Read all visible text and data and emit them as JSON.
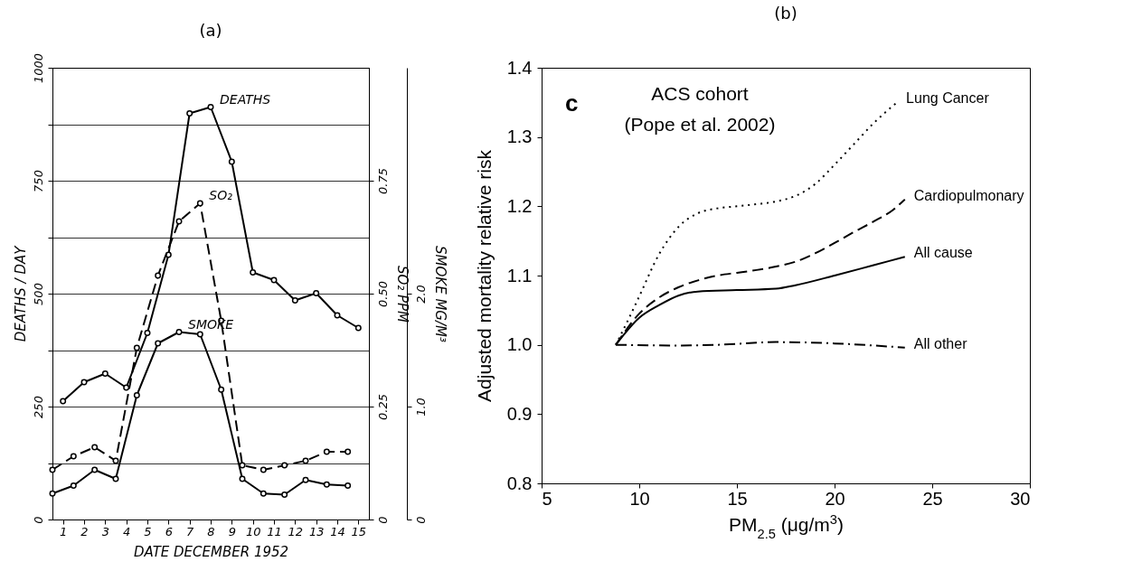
{
  "chart_data": [
    {
      "type": "line",
      "title": "(a)",
      "xlabel": "DATE DECEMBER 1952",
      "ylabel": "DEATHS / DAY",
      "y2label": "SO₂ PPM",
      "y3label": "SMOKE MG/M³",
      "xlim": [
        0.5,
        15.5
      ],
      "xticks": [
        1,
        2,
        3,
        4,
        5,
        6,
        7,
        8,
        9,
        10,
        11,
        12,
        13,
        14,
        15
      ],
      "ylim": [
        0,
        1000
      ],
      "yticks": [
        0,
        {
          "value": 125,
          "label": null
        },
        250,
        {
          "value": 375,
          "label": null
        },
        500,
        {
          "value": 625,
          "label": null
        },
        750,
        {
          "value": 875,
          "label": null
        },
        1000
      ],
      "y2lim": [
        0,
        1
      ],
      "y2ticks": [
        0,
        0.25,
        {
          "value": 0.5,
          "label": "0.50"
        },
        0.75
      ],
      "y3lim": [
        0,
        4
      ],
      "y3ticks": [
        0,
        {
          "value": 1,
          "label": "1.0"
        },
        {
          "value": 2,
          "label": "2.0"
        }
      ],
      "grid": "y",
      "marker": "circle",
      "series": [
        {
          "name": "DEATHS",
          "color": "#000000",
          "line_style": "solid",
          "x": [
            1,
            2,
            3,
            4,
            5,
            6,
            7,
            8,
            9,
            10,
            11,
            12,
            13,
            14,
            15
          ],
          "values": [
            262,
            304,
            323,
            292,
            413,
            586,
            899,
            913,
            792,
            547,
            530,
            485,
            501,
            452,
            424
          ]
        },
        {
          "name": "SO₂",
          "color": "#000000",
          "line_style": "dashed",
          "axis": "y2",
          "x": [
            0.5,
            1.5,
            2.5,
            3.5,
            4.5,
            5.5,
            6.5,
            7.5,
            8.5,
            9.5,
            10.5,
            11.5,
            12.5,
            13.5,
            14.5
          ],
          "values": [
            0.11,
            0.14,
            0.16,
            0.13,
            0.38,
            0.54,
            0.66,
            0.7,
            0.44,
            0.12,
            0.11,
            0.12,
            0.13,
            0.15,
            0.15
          ]
        },
        {
          "name": "SMOKE",
          "color": "#000000",
          "line_style": "solid",
          "axis": "y3",
          "x": [
            0.5,
            1.5,
            2.5,
            3.5,
            4.5,
            5.5,
            6.5,
            7.5,
            8.5,
            9.5,
            10.5,
            11.5,
            12.5,
            13.5,
            14.5
          ],
          "values": [
            0.23,
            0.3,
            0.44,
            0.36,
            1.1,
            1.56,
            1.66,
            1.64,
            1.15,
            0.36,
            0.23,
            0.22,
            0.35,
            0.31,
            0.3
          ]
        }
      ]
    },
    {
      "type": "line",
      "title": "(b)",
      "xlabel": "PM$_{2.5}$ (μg/m$^{3}$)",
      "ylabel": "Adjusted mortality relative risk",
      "xlim": [
        5,
        30
      ],
      "xticks": [
        5,
        10,
        15,
        20,
        25,
        30
      ],
      "ylim": [
        0.8,
        1.4
      ],
      "yticks": [
        0.8,
        0.9,
        {
          "value": 1,
          "label": "1.0"
        },
        1.1,
        1.2,
        1.3,
        1.4
      ],
      "annotations": [
        "c",
        "ACS cohort",
        "(Pope et al. 2002)"
      ],
      "series": [
        {
          "name": "Lung Cancer",
          "color": "#000000",
          "line_style": "dotted",
          "x": [
            8.8,
            9.5,
            10,
            11,
            12,
            13,
            14,
            15,
            16,
            17,
            18,
            19,
            20,
            21,
            22,
            23.2
          ],
          "values": [
            1.0,
            1.04,
            1.07,
            1.13,
            1.17,
            1.19,
            1.197,
            1.2,
            1.203,
            1.207,
            1.215,
            1.232,
            1.26,
            1.29,
            1.32,
            1.35
          ]
        },
        {
          "name": "Cardiopulmonary",
          "color": "#000000",
          "line_style": "dashed",
          "x": [
            8.8,
            10,
            11,
            12,
            13,
            14,
            15,
            16,
            17,
            18,
            19,
            20,
            21,
            22,
            23,
            23.6
          ],
          "values": [
            1.0,
            1.045,
            1.068,
            1.083,
            1.093,
            1.1,
            1.104,
            1.108,
            1.113,
            1.12,
            1.132,
            1.147,
            1.163,
            1.178,
            1.195,
            1.21
          ]
        },
        {
          "name": "All cause",
          "color": "#000000",
          "line_style": "solid",
          "x": [
            8.8,
            10,
            11,
            12,
            13,
            15,
            17,
            18,
            20,
            22,
            23.6
          ],
          "values": [
            1.0,
            1.039,
            1.057,
            1.071,
            1.077,
            1.079,
            1.081,
            1.086,
            1.1,
            1.115,
            1.127
          ]
        },
        {
          "name": "All other",
          "color": "#000000",
          "line_style": "dashdot",
          "x": [
            8.8,
            12,
            14,
            17,
            20,
            23.6
          ],
          "values": [
            1.0,
            0.999,
            1.0,
            1.004,
            1.002,
            0.996
          ]
        }
      ]
    }
  ]
}
